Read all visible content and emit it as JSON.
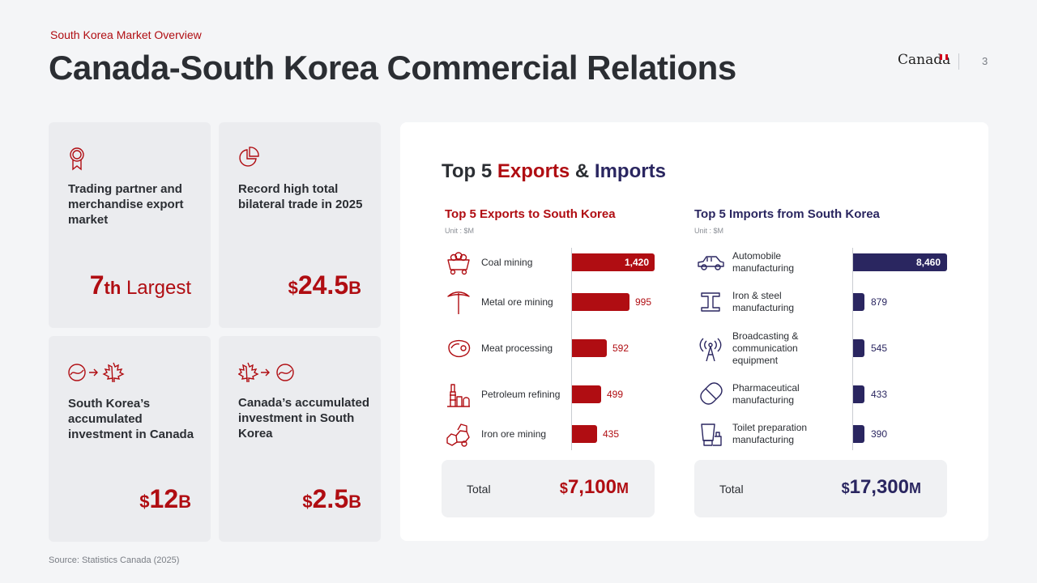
{
  "header": {
    "eyebrow": "South Korea Market Overview",
    "title": "Canada-South Korea Commercial Relations",
    "brand": "Canada",
    "page_number": "3"
  },
  "cards": {
    "trading_partner": {
      "label": "Trading partner and merchandise export market",
      "value_number": "7",
      "value_suffix": "th",
      "value_word": " Largest",
      "icon": "award-ribbon-icon"
    },
    "bilateral_trade": {
      "label": "Record high total bilateral trade in 2025",
      "value_prefix": "$",
      "value_number": "24.5",
      "value_suffix": "B",
      "icon": "pie-chart-icon"
    },
    "kr_investment": {
      "label": "South Korea’s accumulated investment in Canada",
      "value_prefix": "$",
      "value_number": "12",
      "value_suffix": "B",
      "icon": "korea-to-canada-icon"
    },
    "ca_investment": {
      "label": "Canada’s accumulated investment in South Korea",
      "value_prefix": "$",
      "value_number": "2.5",
      "value_suffix": "B",
      "icon": "canada-to-korea-icon"
    }
  },
  "panel": {
    "title_prefix": "Top 5 ",
    "title_exports": "Exports",
    "title_and": " & ",
    "title_imports": "Imports"
  },
  "colors": {
    "export": "#b00d12",
    "import": "#2a2660"
  },
  "chart_data": [
    {
      "type": "bar",
      "orientation": "horizontal",
      "title": "Top 5 Exports to South Korea",
      "unit": "Unit : $M",
      "categories": [
        "Coal mining",
        "Metal ore mining",
        "Meat processing",
        "Petroleum refining",
        "Iron ore mining"
      ],
      "icons": [
        "coal-cart-icon",
        "pickaxe-icon",
        "meat-icon",
        "refinery-icon",
        "ore-rocks-icon"
      ],
      "values": [
        1420,
        995,
        592,
        499,
        435
      ],
      "value_labels": [
        "1,420",
        "995",
        "592",
        "499",
        "435"
      ],
      "total_label": "Total",
      "total_prefix": "$",
      "total_number": "7,100",
      "total_suffix": "M"
    },
    {
      "type": "bar",
      "orientation": "horizontal",
      "title": "Top 5 Imports from South Korea",
      "unit": "Unit : $M",
      "categories": [
        "Automobile manufacturing",
        "Iron & steel manufacturing",
        "Broadcasting & communication equipment",
        "Pharmaceutical manufacturing",
        "Toilet preparation manufacturing"
      ],
      "icons": [
        "car-icon",
        "steel-beam-icon",
        "antenna-icon",
        "pill-icon",
        "cosmetic-tube-icon"
      ],
      "values": [
        8460,
        879,
        545,
        433,
        390
      ],
      "value_labels": [
        "8,460",
        "879",
        "545",
        "433",
        "390"
      ],
      "total_label": "Total",
      "total_prefix": "$",
      "total_number": "17,300",
      "total_suffix": "M"
    }
  ],
  "footer": {
    "source": "Source: Statistics Canada (2025)"
  }
}
